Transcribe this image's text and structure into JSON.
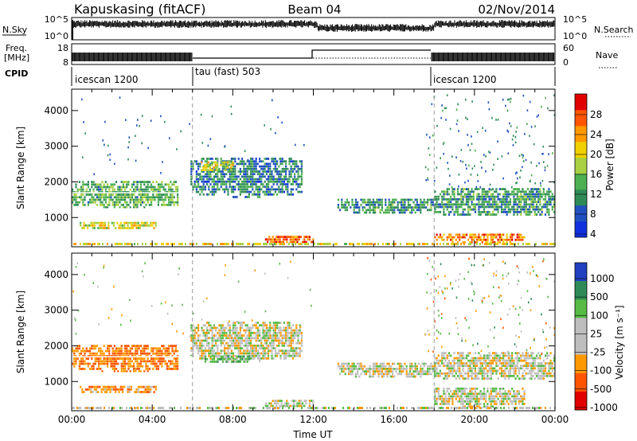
{
  "header": {
    "station": "Kapuskasing (fitACF)",
    "beam": "Beam 04",
    "date": "02/Nov/2014"
  },
  "nsky_panel": {
    "left_label": "N.Sky",
    "right_label": "N.Search",
    "left_ticks": [
      "10^5",
      "10^0"
    ],
    "right_ticks": [
      "10^5",
      "10^0"
    ]
  },
  "freq_panel": {
    "left_label_line1": "Freq.",
    "left_label_line2": "[MHz]",
    "right_label": "Nave",
    "left_ticks": [
      "18",
      "8"
    ],
    "right_ticks": [
      "60",
      "0"
    ]
  },
  "cpid_panel": {
    "label": "CPID",
    "segments": [
      {
        "start_hour": 0,
        "text": "icescan 1200"
      },
      {
        "start_hour": 6,
        "text": "tau (fast) 503"
      },
      {
        "start_hour": 18,
        "text": "icescan 1200"
      }
    ]
  },
  "colors": {
    "power_scale": [
      "#1030e0",
      "#2050c0",
      "#2e8b57",
      "#4caf50",
      "#a8d040",
      "#f0d000",
      "#ff9900",
      "#ff5500",
      "#e00000"
    ],
    "velocity_scale": [
      "#2040c0",
      "#2e8b57",
      "#55bb44",
      "#bebebe",
      "#bebebe",
      "#ff9900",
      "#ff5500",
      "#e00000"
    ]
  },
  "chart_data": [
    {
      "type": "heatmap",
      "panel": "power",
      "ylabel": "Slant Range [km]",
      "xlabel": "",
      "yticks": [
        1000,
        2000,
        3000,
        4000
      ],
      "ylim": [
        180,
        4600
      ],
      "xlim": [
        0,
        24
      ],
      "colorbar_label": "Power [dB]",
      "colorbar_ticks": [
        "28",
        "24",
        "20",
        "16",
        "12",
        "8",
        "4"
      ],
      "mode_change_lines": [
        6,
        18
      ],
      "echo_regions": [
        {
          "t0": 0.0,
          "t1": 5.3,
          "r0": 1300,
          "r1": 2100,
          "level": 12
        },
        {
          "t0": 5.9,
          "t1": 11.4,
          "r0": 1600,
          "r1": 2750,
          "level": 8
        },
        {
          "t0": 6.4,
          "t1": 8.0,
          "r0": 2300,
          "r1": 2650,
          "level": 18
        },
        {
          "t0": 9.6,
          "t1": 12.0,
          "r0": 280,
          "r1": 560,
          "level": 26
        },
        {
          "t0": 13.2,
          "t1": 18.0,
          "r0": 1150,
          "r1": 1600,
          "level": 10
        },
        {
          "t0": 18.0,
          "t1": 24.0,
          "r0": 1050,
          "r1": 1900,
          "level": 10
        },
        {
          "t0": 18.0,
          "t1": 22.5,
          "r0": 320,
          "r1": 620,
          "level": 24
        },
        {
          "t0": 0.4,
          "t1": 4.2,
          "r0": 700,
          "r1": 950,
          "level": 18
        }
      ]
    },
    {
      "type": "heatmap",
      "panel": "velocity",
      "ylabel": "Slant Range [km]",
      "xlabel": "Time UT",
      "xticks": [
        "00:00",
        "04:00",
        "08:00",
        "12:00",
        "16:00",
        "20:00",
        "00:00"
      ],
      "yticks": [
        1000,
        2000,
        3000,
        4000
      ],
      "ylim": [
        180,
        4600
      ],
      "xlim": [
        0,
        24
      ],
      "colorbar_label": "Velocity [m s⁻¹]",
      "colorbar_ticks": [
        "1000",
        "500",
        "100",
        "25",
        "-25",
        "-100",
        "-500",
        "-1000"
      ],
      "mode_change_lines": [
        6,
        18
      ],
      "echo_regions": [
        {
          "t0": 0.0,
          "t1": 5.3,
          "r0": 1300,
          "r1": 2100,
          "v": -200
        },
        {
          "t0": 5.9,
          "t1": 11.4,
          "r0": 1600,
          "r1": 2750,
          "v": 0
        },
        {
          "t0": 6.6,
          "t1": 8.8,
          "r0": 1550,
          "r1": 1800,
          "v": 150
        },
        {
          "t0": 9.6,
          "t1": 12.0,
          "r0": 280,
          "r1": 560,
          "v": 0
        },
        {
          "t0": 13.2,
          "t1": 18.0,
          "r0": 1150,
          "r1": 1600,
          "v": 0
        },
        {
          "t0": 18.0,
          "t1": 24.0,
          "r0": 1050,
          "r1": 1900,
          "v": 0
        },
        {
          "t0": 18.0,
          "t1": 22.5,
          "r0": 320,
          "r1": 900,
          "v": 0
        },
        {
          "t0": 0.4,
          "t1": 4.2,
          "r0": 700,
          "r1": 950,
          "v": -150
        }
      ]
    }
  ]
}
